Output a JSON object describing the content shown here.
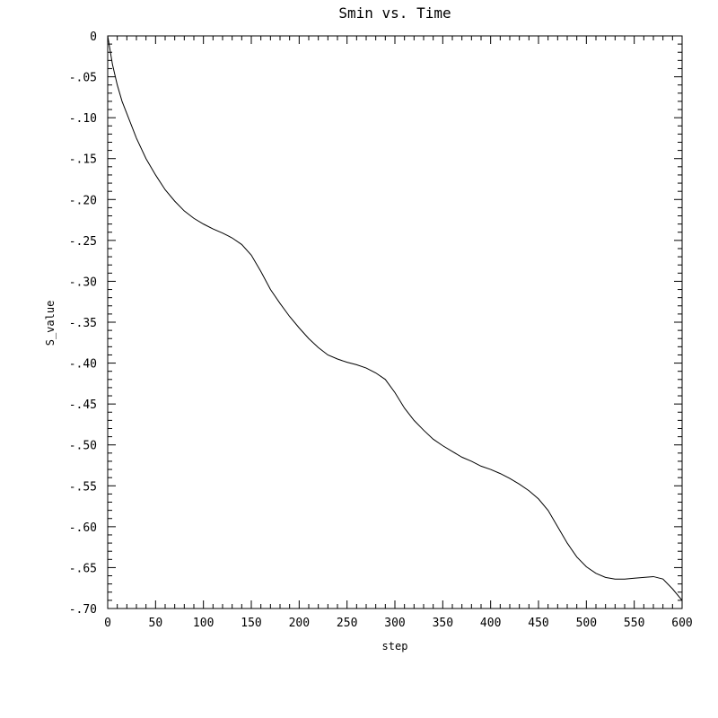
{
  "chart_data": {
    "type": "line",
    "title": "Smin vs. Time",
    "xlabel": "step",
    "ylabel": "S_value",
    "xlim": [
      0,
      600
    ],
    "ylim": [
      -0.7,
      0
    ],
    "x_ticks": [
      0,
      50,
      100,
      150,
      200,
      250,
      300,
      350,
      400,
      450,
      500,
      550,
      600
    ],
    "x_tick_labels": [
      "0",
      "50",
      "100",
      "150",
      "200",
      "250",
      "300",
      "350",
      "400",
      "450",
      "500",
      "550",
      "600"
    ],
    "y_ticks": [
      0,
      -0.05,
      -0.1,
      -0.15,
      -0.2,
      -0.25,
      -0.3,
      -0.35,
      -0.4,
      -0.45,
      -0.5,
      -0.55,
      -0.6,
      -0.65,
      -0.7
    ],
    "y_tick_labels": [
      "0",
      "-.05",
      "-.10",
      "-.15",
      "-.20",
      "-.25",
      "-.30",
      "-.35",
      "-.40",
      "-.45",
      "-.50",
      "-.55",
      "-.60",
      "-.65",
      "-.70"
    ],
    "grid": false,
    "line_color": "#000000",
    "series": [
      {
        "x": [
          0,
          5,
          10,
          15,
          20,
          30,
          40,
          50,
          60,
          70,
          80,
          90,
          100,
          110,
          120,
          130,
          140,
          150,
          160,
          170,
          180,
          190,
          200,
          210,
          220,
          230,
          240,
          250,
          260,
          270,
          280,
          290,
          300,
          310,
          320,
          330,
          340,
          350,
          360,
          370,
          380,
          390,
          400,
          410,
          420,
          430,
          440,
          450,
          460,
          470,
          480,
          490,
          500,
          510,
          520,
          530,
          540,
          550,
          560,
          570,
          580,
          590,
          600
        ],
        "y": [
          0,
          -0.035,
          -0.06,
          -0.08,
          -0.095,
          -0.125,
          -0.15,
          -0.17,
          -0.188,
          -0.202,
          -0.214,
          -0.223,
          -0.23,
          -0.236,
          -0.241,
          -0.247,
          -0.255,
          -0.268,
          -0.288,
          -0.31,
          -0.327,
          -0.343,
          -0.357,
          -0.37,
          -0.381,
          -0.39,
          -0.395,
          -0.399,
          -0.402,
          -0.406,
          -0.412,
          -0.42,
          -0.436,
          -0.455,
          -0.47,
          -0.482,
          -0.493,
          -0.501,
          -0.508,
          -0.515,
          -0.52,
          -0.526,
          -0.53,
          -0.535,
          -0.541,
          -0.548,
          -0.556,
          -0.566,
          -0.58,
          -0.6,
          -0.62,
          -0.637,
          -0.649,
          -0.657,
          -0.662,
          -0.664,
          -0.664,
          -0.663,
          -0.662,
          -0.661,
          -0.664,
          -0.676,
          -0.69
        ]
      }
    ]
  }
}
